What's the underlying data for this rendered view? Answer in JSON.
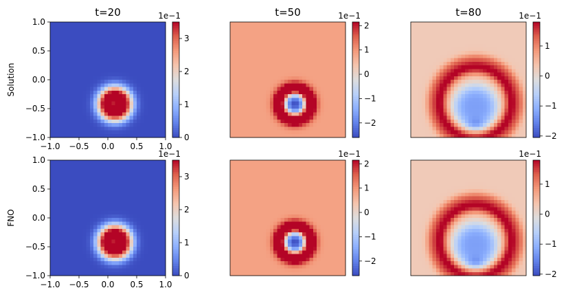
{
  "chart_data": {
    "type": "heatmap",
    "colormap": "coolwarm",
    "row_labels": [
      "Solution",
      "FNO"
    ],
    "col_titles": [
      "t=20",
      "t=50",
      "t=80"
    ],
    "xlim": [
      -1.0,
      1.0
    ],
    "ylim": [
      -1.0,
      1.0
    ],
    "tick_labels": [
      "−1.0",
      "−0.5",
      "0.0",
      "0.5",
      "1.0"
    ],
    "grid_resolution": 32,
    "panels": [
      {
        "row": 0,
        "col": 0,
        "time": 20,
        "field": "ring",
        "center": [
          0.12,
          -0.42
        ],
        "colorbar": {
          "multiplier": "1e−1",
          "ticks": [
            "0",
            "1",
            "2",
            "3"
          ],
          "tick_values": [
            0,
            1,
            2,
            3
          ],
          "vmin": 0.0,
          "vmax": 3.5
        }
      },
      {
        "row": 0,
        "col": 1,
        "time": 50,
        "field": "ring_dip",
        "center": [
          0.12,
          -0.42
        ],
        "colorbar": {
          "multiplier": "1e−1",
          "ticks": [
            "−2",
            "−1",
            "0",
            "1",
            "2"
          ],
          "tick_values": [
            -2,
            -1,
            0,
            1,
            2
          ],
          "vmin": -2.6,
          "vmax": 2.15
        }
      },
      {
        "row": 0,
        "col": 2,
        "time": 80,
        "field": "arc",
        "center": [
          0.12,
          -0.42
        ],
        "colorbar": {
          "multiplier": "1e−1",
          "ticks": [
            "−2",
            "−1",
            "0",
            "1"
          ],
          "tick_values": [
            -2,
            -1,
            0,
            1
          ],
          "vmin": -2.05,
          "vmax": 1.8
        }
      },
      {
        "row": 1,
        "col": 0,
        "time": 20,
        "field": "ring",
        "center": [
          0.12,
          -0.42
        ],
        "colorbar": {
          "multiplier": "1e−1",
          "ticks": [
            "0",
            "1",
            "2",
            "3"
          ],
          "tick_values": [
            0,
            1,
            2,
            3
          ],
          "vmin": 0.0,
          "vmax": 3.5
        }
      },
      {
        "row": 1,
        "col": 1,
        "time": 50,
        "field": "ring_dip",
        "center": [
          0.12,
          -0.42
        ],
        "colorbar": {
          "multiplier": "1e−1",
          "ticks": [
            "−2",
            "−1",
            "0",
            "1",
            "2"
          ],
          "tick_values": [
            -2,
            -1,
            0,
            1,
            2
          ],
          "vmin": -2.6,
          "vmax": 2.15
        }
      },
      {
        "row": 1,
        "col": 2,
        "time": 80,
        "field": "arc",
        "center": [
          0.12,
          -0.42
        ],
        "colorbar": {
          "multiplier": "1e−1",
          "ticks": [
            "−2",
            "−1",
            "0",
            "1"
          ],
          "tick_values": [
            -2,
            -1,
            0,
            1
          ],
          "vmin": -2.05,
          "vmax": 1.8
        }
      }
    ]
  }
}
